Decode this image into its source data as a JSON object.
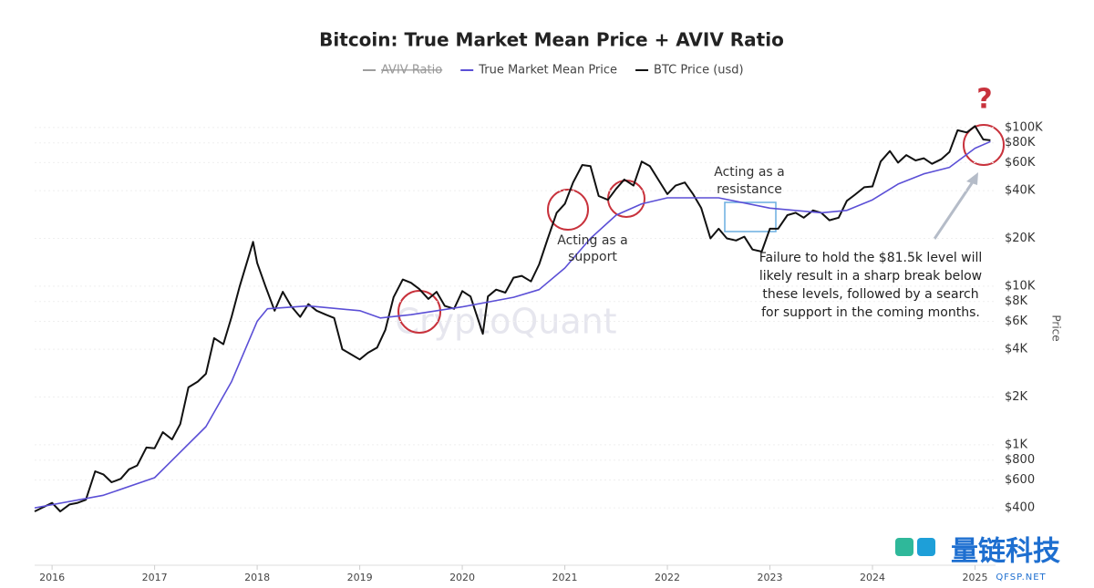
{
  "chart_data": {
    "type": "line",
    "title": "Bitcoin: True Market Mean Price + AVIV Ratio",
    "y_axis_label": "Price",
    "log_scale": true,
    "grid": true,
    "legend_position": "top",
    "hidden_legend_entries": [
      {
        "name": "AVIV Ratio",
        "color": "#9e9e9e"
      }
    ],
    "xlim": [
      2015.83,
      2025.2
    ],
    "xticks": [
      2016,
      2017,
      2018,
      2019,
      2020,
      2021,
      2022,
      2023,
      2024,
      2025
    ],
    "ylim": [
      174,
      130000
    ],
    "yticks": [
      {
        "value": 400,
        "label": "$400"
      },
      {
        "value": 600,
        "label": "$600"
      },
      {
        "value": 800,
        "label": "$800"
      },
      {
        "value": 1000,
        "label": "$1K"
      },
      {
        "value": 2000,
        "label": "$2K"
      },
      {
        "value": 4000,
        "label": "$4K"
      },
      {
        "value": 6000,
        "label": "$6K"
      },
      {
        "value": 8000,
        "label": "$8K"
      },
      {
        "value": 10000,
        "label": "$10K"
      },
      {
        "value": 20000,
        "label": "$20K"
      },
      {
        "value": 40000,
        "label": "$40K"
      },
      {
        "value": 60000,
        "label": "$60K"
      },
      {
        "value": 80000,
        "label": "$80K"
      },
      {
        "value": 100000,
        "label": "$100K"
      }
    ],
    "series": [
      {
        "name": "True Market Mean Price",
        "color": "#5b4fd6",
        "x": [
          2015.83,
          2016.5,
          2017.0,
          2017.5,
          2017.75,
          2018.0,
          2018.1,
          2018.5,
          2019.0,
          2019.2,
          2019.5,
          2020.0,
          2020.5,
          2020.75,
          2021.0,
          2021.25,
          2021.5,
          2021.75,
          2022.0,
          2022.5,
          2023.0,
          2023.5,
          2023.75,
          2024.0,
          2024.25,
          2024.5,
          2024.75,
          2025.0,
          2025.15
        ],
        "values": [
          400,
          480,
          620,
          1300,
          2500,
          6000,
          7200,
          7500,
          7000,
          6300,
          6600,
          7400,
          8500,
          9500,
          13000,
          20000,
          28000,
          33000,
          36000,
          36000,
          31000,
          29000,
          30000,
          35000,
          44000,
          51000,
          56000,
          74000,
          81500
        ]
      },
      {
        "name": "BTC Price (usd)",
        "color": "#111111",
        "x": [
          2015.83,
          2016.0,
          2016.08,
          2016.17,
          2016.25,
          2016.33,
          2016.42,
          2016.5,
          2016.58,
          2016.67,
          2016.75,
          2016.83,
          2016.92,
          2017.0,
          2017.08,
          2017.17,
          2017.25,
          2017.33,
          2017.42,
          2017.5,
          2017.58,
          2017.67,
          2017.75,
          2017.83,
          2017.96,
          2018.0,
          2018.08,
          2018.17,
          2018.25,
          2018.33,
          2018.42,
          2018.5,
          2018.58,
          2018.67,
          2018.75,
          2018.83,
          2018.92,
          2019.0,
          2019.08,
          2019.17,
          2019.25,
          2019.33,
          2019.42,
          2019.5,
          2019.58,
          2019.67,
          2019.75,
          2019.83,
          2019.92,
          2020.0,
          2020.08,
          2020.2,
          2020.25,
          2020.33,
          2020.42,
          2020.5,
          2020.58,
          2020.67,
          2020.75,
          2020.83,
          2020.92,
          2021.0,
          2021.08,
          2021.17,
          2021.25,
          2021.33,
          2021.42,
          2021.5,
          2021.58,
          2021.67,
          2021.75,
          2021.83,
          2021.92,
          2022.0,
          2022.08,
          2022.17,
          2022.25,
          2022.33,
          2022.42,
          2022.5,
          2022.58,
          2022.67,
          2022.75,
          2022.83,
          2022.92,
          2023.0,
          2023.08,
          2023.17,
          2023.25,
          2023.33,
          2023.42,
          2023.5,
          2023.58,
          2023.67,
          2023.75,
          2023.83,
          2023.92,
          2024.0,
          2024.08,
          2024.17,
          2024.25,
          2024.33,
          2024.42,
          2024.5,
          2024.58,
          2024.67,
          2024.75,
          2024.83,
          2024.92,
          2025.0,
          2025.08,
          2025.15
        ],
        "values": [
          380,
          430,
          380,
          420,
          430,
          450,
          680,
          650,
          580,
          610,
          700,
          740,
          960,
          950,
          1200,
          1080,
          1350,
          2300,
          2500,
          2800,
          4700,
          4300,
          6400,
          10000,
          19000,
          14000,
          10000,
          7000,
          9200,
          7500,
          6400,
          7700,
          7000,
          6600,
          6300,
          4000,
          3700,
          3450,
          3800,
          4100,
          5300,
          8500,
          11000,
          10500,
          9600,
          8300,
          9200,
          7500,
          7200,
          9300,
          8600,
          5000,
          8600,
          9500,
          9100,
          11300,
          11600,
          10700,
          13700,
          19600,
          29000,
          33000,
          45000,
          58000,
          57000,
          37000,
          35000,
          41000,
          47000,
          43000,
          61000,
          57000,
          46000,
          38000,
          43000,
          45000,
          38000,
          31000,
          20000,
          23000,
          20000,
          19400,
          20500,
          17000,
          16500,
          23000,
          23000,
          28000,
          29000,
          27000,
          30000,
          29000,
          26000,
          27000,
          34500,
          37700,
          42000,
          42500,
          61000,
          71000,
          60000,
          67000,
          62000,
          64000,
          59000,
          63000,
          70000,
          96000,
          93000,
          102000,
          84000,
          83000
        ]
      }
    ],
    "annotations": [
      {
        "lines": [
          "Acting as a",
          "support"
        ]
      },
      {
        "lines": [
          "Acting as a",
          "resistance"
        ]
      },
      {
        "lines": [
          "Failure to hold the $81.5k level will",
          "likely result in a sharp break below",
          "these levels, followed by a search",
          "for support in the coming months."
        ]
      },
      {
        "lines": [
          "?"
        ]
      }
    ],
    "watermark": "CryptoQuant",
    "logo": {
      "name": "量链科技",
      "site": "QFSP.NET"
    }
  }
}
